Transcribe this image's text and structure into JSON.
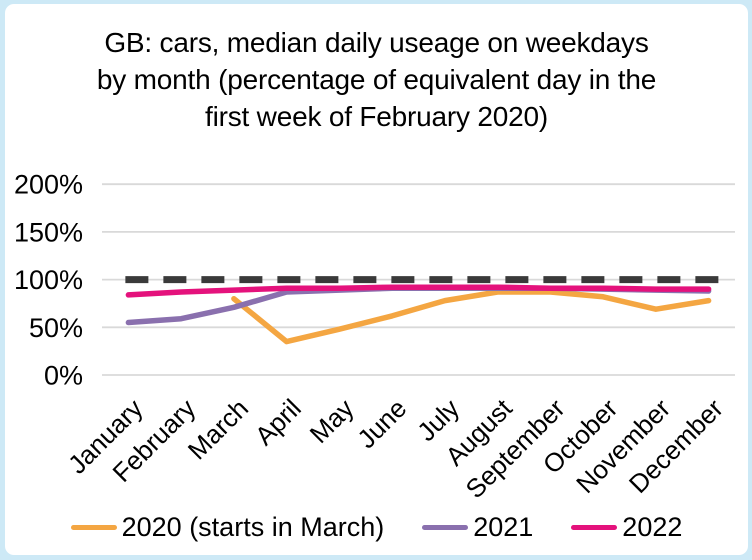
{
  "page": {
    "background_color": "#cde9f6",
    "card_color": "#ffffff"
  },
  "title": {
    "lines": [
      "GB: cars, median daily useage on weekdays",
      "by month (percentage of equivalent day in the",
      "first week of February 2020)"
    ]
  },
  "chart_data": {
    "type": "line",
    "title": "GB: cars, median daily useage on weekdays by month (percentage of equivalent day in the first week of February 2020)",
    "categories": [
      "January",
      "February",
      "March",
      "April",
      "May",
      "June",
      "July",
      "August",
      "September",
      "October",
      "November",
      "December"
    ],
    "y_ticks": [
      "0%",
      "50%",
      "100%",
      "150%",
      "200%"
    ],
    "y_tick_values": [
      0,
      50,
      100,
      150,
      200
    ],
    "ylim": [
      0,
      200
    ],
    "grid": true,
    "gridline_color": "#d9d9d9",
    "legend_position": "bottom",
    "reference_line": {
      "value": 100,
      "style": "dashed",
      "color": "#3a3a3a"
    },
    "series": [
      {
        "name": "2020 (starts in March)",
        "color": "#f4a642",
        "values": [
          null,
          null,
          80,
          35,
          48,
          62,
          78,
          87,
          87,
          82,
          69,
          78
        ]
      },
      {
        "name": "2021",
        "color": "#8a70ae",
        "values": [
          55,
          59,
          71,
          87,
          89,
          91,
          91,
          91,
          91,
          90,
          89,
          88
        ]
      },
      {
        "name": "2022",
        "color": "#e4127c",
        "values": [
          84,
          87,
          89,
          91,
          91,
          92,
          92,
          92,
          91,
          91,
          90,
          90
        ]
      }
    ]
  }
}
